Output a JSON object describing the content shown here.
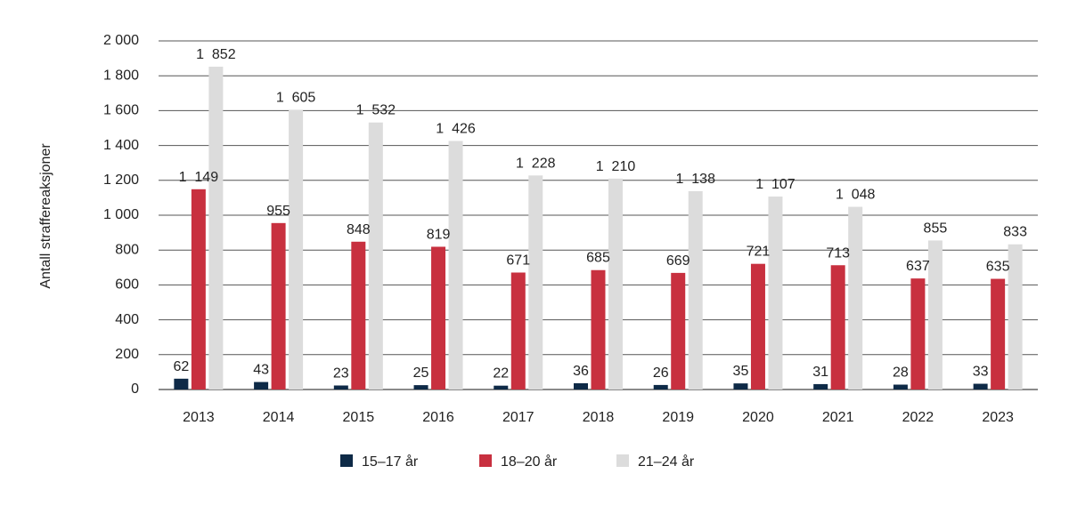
{
  "chart_data": {
    "type": "bar",
    "title": "",
    "xlabel": "",
    "ylabel": "Antall straffereaksjoner",
    "ylim": [
      0,
      2000
    ],
    "yticks": [
      0,
      200,
      400,
      600,
      800,
      1000,
      1200,
      1400,
      1600,
      1800,
      2000
    ],
    "ytick_labels": [
      "0",
      "200",
      "400",
      "600",
      "800",
      "1 000",
      "1 200",
      "1 400",
      "1 600",
      "1 800",
      "2 000"
    ],
    "grid": true,
    "legend_position": "bottom",
    "categories": [
      "2013",
      "2014",
      "2015",
      "2016",
      "2017",
      "2018",
      "2019",
      "2020",
      "2021",
      "2022",
      "2023"
    ],
    "series": [
      {
        "name": "15–17 år",
        "color": "#0e2a47",
        "values": [
          62,
          43,
          23,
          25,
          22,
          36,
          26,
          35,
          31,
          28,
          33
        ],
        "labels": [
          "62",
          "43",
          "23",
          "25",
          "22",
          "36",
          "26",
          "35",
          "31",
          "28",
          "33"
        ]
      },
      {
        "name": "18–20 år",
        "color": "#c8303f",
        "values": [
          1149,
          955,
          848,
          819,
          671,
          685,
          669,
          721,
          713,
          637,
          635
        ],
        "labels": [
          "1  149",
          "955",
          "848",
          "819",
          "671",
          "685",
          "669",
          "721",
          "713",
          "637",
          "635"
        ]
      },
      {
        "name": "21–24 år",
        "color": "#dcdcdc",
        "values": [
          1852,
          1605,
          1532,
          1426,
          1228,
          1210,
          1138,
          1107,
          1048,
          855,
          833
        ],
        "labels": [
          "1  852",
          "1  605",
          "1  532",
          "1  426",
          "1  228",
          "1  210",
          "1  138",
          "1  107",
          "1  048",
          "855",
          "833"
        ]
      }
    ]
  }
}
